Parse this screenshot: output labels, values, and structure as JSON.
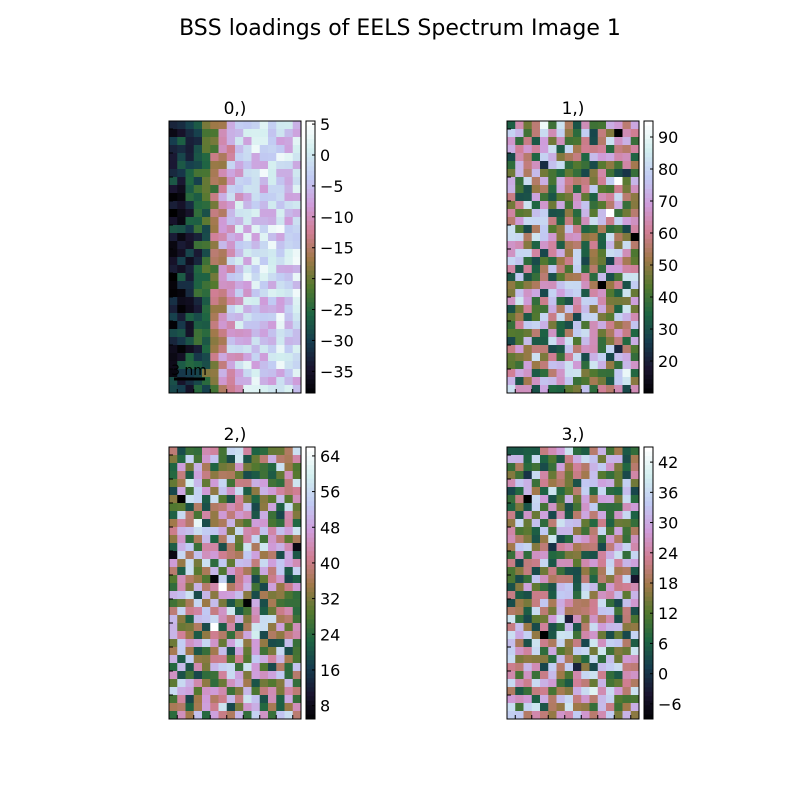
{
  "figure": {
    "title": "BSS loadings of EELS Spectrum Image 1"
  },
  "colormap": {
    "name": "cubehelix",
    "stops": [
      "#000000",
      "#1a1530",
      "#163d4e",
      "#1f6642",
      "#54792f",
      "#a07949",
      "#d07e93",
      "#cf9cda",
      "#c1caf3",
      "#d2eeef",
      "#ffffff"
    ]
  },
  "chart_data": [
    {
      "type": "heatmap",
      "title": "0,)",
      "grid": {
        "rows": 34,
        "cols": 16
      },
      "pattern": "gradient-left-to-right",
      "colorbar": {
        "range": [
          -38.5,
          5.5
        ],
        "ticks": [
          5,
          0,
          -5,
          -10,
          -15,
          -20,
          -25,
          -30,
          -35
        ]
      },
      "scalebar": {
        "label": "3 nm"
      },
      "seed": 11
    },
    {
      "type": "heatmap",
      "title": "1,)",
      "grid": {
        "rows": 34,
        "cols": 16
      },
      "pattern": "noise",
      "colorbar": {
        "range": [
          10,
          95
        ],
        "ticks": [
          90,
          80,
          70,
          60,
          50,
          40,
          30,
          20
        ]
      },
      "seed": 23
    },
    {
      "type": "heatmap",
      "title": "2,)",
      "grid": {
        "rows": 34,
        "cols": 16
      },
      "pattern": "noise",
      "colorbar": {
        "range": [
          5,
          66
        ],
        "ticks": [
          64,
          56,
          48,
          40,
          32,
          24,
          16,
          8
        ]
      },
      "seed": 37
    },
    {
      "type": "heatmap",
      "title": "3,)",
      "grid": {
        "rows": 34,
        "cols": 16
      },
      "pattern": "noise",
      "colorbar": {
        "range": [
          -9,
          45
        ],
        "ticks": [
          42,
          36,
          30,
          24,
          18,
          12,
          6,
          0,
          -6
        ]
      },
      "seed": 53
    }
  ]
}
